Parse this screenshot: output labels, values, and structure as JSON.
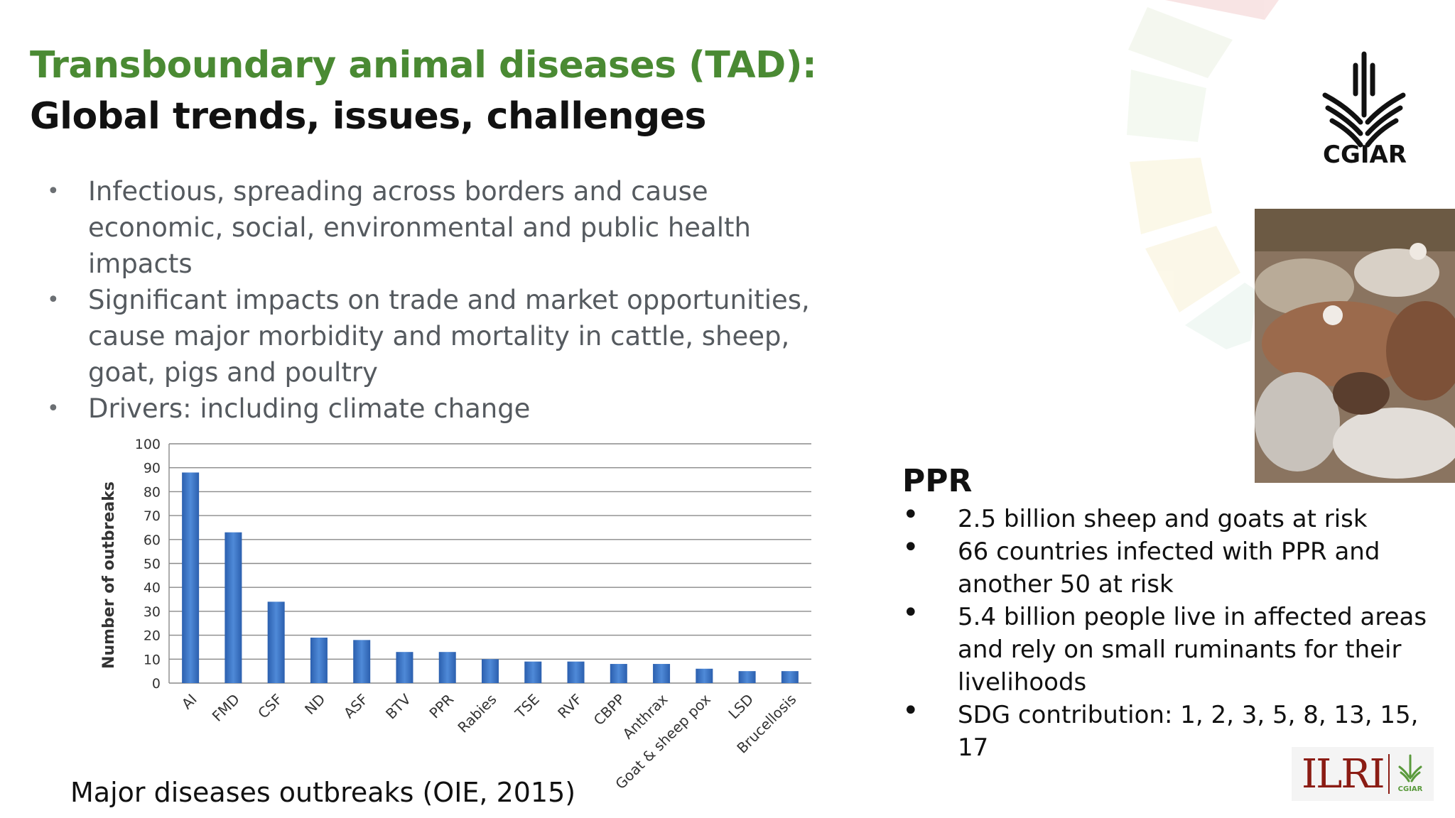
{
  "slide": {
    "title_line1": "Transboundary animal diseases (TAD):",
    "title_line2": "Global trends, issues, challenges",
    "bullets": [
      "Infectious, spreading across borders and cause economic, social, environmental and public health impacts",
      "Significant impacts on trade and market opportunities, cause major morbidity and mortality in cattle, sheep, goat, pigs and poultry",
      "Drivers: including climate change"
    ],
    "caption": "Major diseases outbreaks (OIE, 2015)",
    "logo_text": "CGIAR",
    "ppr": {
      "title": "PPR",
      "items": [
        "2.5 billion sheep and goats at risk",
        "66 countries infected with PPR and another 50 at risk",
        "5.4 billion people live in affected areas and rely on small ruminants for their livelihoods",
        "SDG contribution: 1, 2, 3, 5, 8, 13, 15, 17"
      ]
    },
    "ilri_logo": {
      "text": "ILRI",
      "subtext": "CGIAR"
    },
    "colors": {
      "title_green": "#4a8a33",
      "bar_blue": "#3b72c4",
      "ilri_red": "#8b1c14",
      "cgiar_green": "#5a9a3c"
    },
    "icons": [
      "cgiar-logo-icon",
      "ilri-logo-icon",
      "sdg-wheel-decoration",
      "goats-photo"
    ]
  },
  "chart_data": {
    "type": "bar",
    "categories": [
      "AI",
      "FMD",
      "CSF",
      "ND",
      "ASF",
      "BTV",
      "PPR",
      "Rabies",
      "TSE",
      "RVF",
      "CBPP",
      "Anthrax",
      "Goat & sheep pox",
      "LSD",
      "Brucellosis"
    ],
    "values": [
      88,
      63,
      34,
      19,
      18,
      13,
      13,
      10,
      9,
      9,
      8,
      8,
      6,
      5,
      5
    ],
    "ylabel": "Number of outbreaks",
    "xlabel": "",
    "ylim": [
      0,
      100
    ],
    "yticks": [
      0,
      10,
      20,
      30,
      40,
      50,
      60,
      70,
      80,
      90,
      100
    ],
    "grid": true,
    "legend": "none"
  }
}
